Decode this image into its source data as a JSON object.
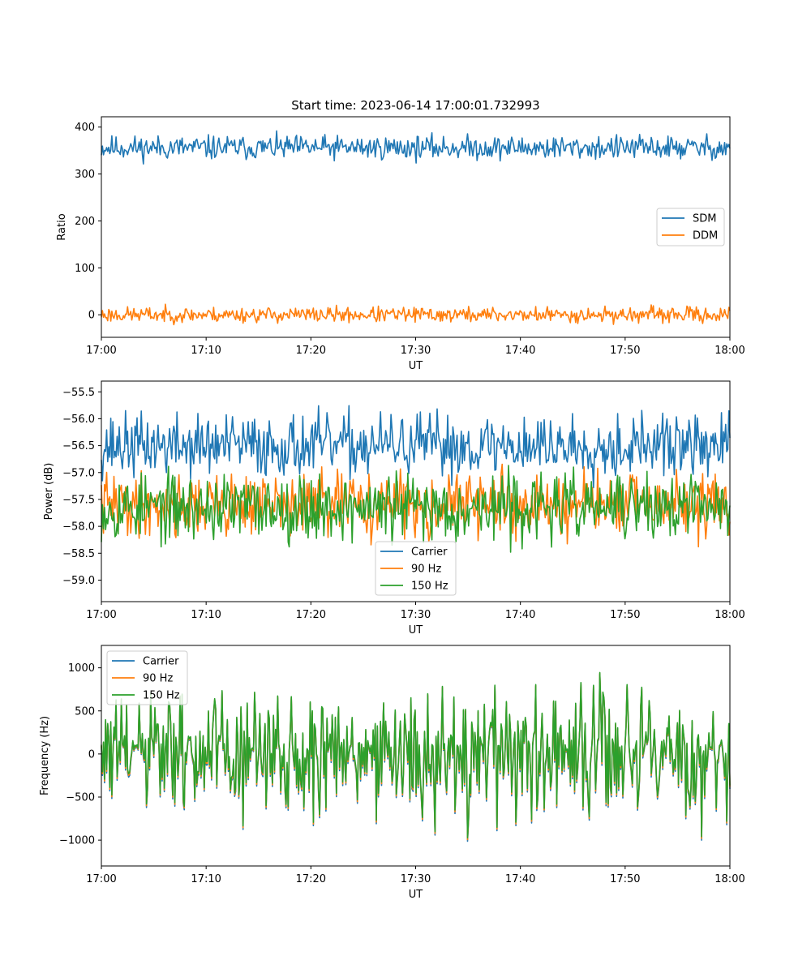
{
  "chart_data": [
    {
      "type": "line",
      "title": "Start time: 2023-06-14 17:00:01.732993",
      "xlabel": "UT",
      "ylabel": "Ratio",
      "xlim": [
        "17:00",
        "18:00"
      ],
      "xticks": [
        "17:00",
        "17:10",
        "17:20",
        "17:30",
        "17:40",
        "17:50",
        "18:00"
      ],
      "ylim": [
        -48,
        422
      ],
      "yticks": [
        0,
        100,
        200,
        300,
        400
      ],
      "ytick_labels": [
        "0",
        "100",
        "200",
        "300",
        "400"
      ],
      "grid": false,
      "legend": "center-right",
      "series": [
        {
          "name": "SDM",
          "color": "#1f77b4",
          "mean": 356,
          "noise": 14,
          "min": 315,
          "max": 397,
          "seed": 11
        },
        {
          "name": "DDM",
          "color": "#ff7f0e",
          "mean": 0,
          "noise": 9,
          "min": -27,
          "max": 25,
          "seed": 23
        }
      ]
    },
    {
      "type": "line",
      "title": "",
      "xlabel": "UT",
      "ylabel": "Power (dB)",
      "xlim": [
        "17:00",
        "18:00"
      ],
      "xticks": [
        "17:00",
        "17:10",
        "17:20",
        "17:30",
        "17:40",
        "17:50",
        "18:00"
      ],
      "ylim": [
        -59.4,
        -55.3
      ],
      "yticks": [
        -59.0,
        -58.5,
        -58.0,
        -57.5,
        -57.0,
        -56.5,
        -56.0,
        -55.5
      ],
      "ytick_labels": [
        "−59.0",
        "−58.5",
        "−58.0",
        "−57.5",
        "−57.0",
        "−56.5",
        "−56.0",
        "−55.5"
      ],
      "grid": false,
      "legend": "lower-center",
      "series": [
        {
          "name": "Carrier",
          "color": "#1f77b4",
          "mean": -56.5,
          "noise": 0.32,
          "min": -57.6,
          "max": -55.37,
          "seed": 37
        },
        {
          "name": "90 Hz",
          "color": "#ff7f0e",
          "mean": -57.6,
          "noise": 0.32,
          "min": -58.55,
          "max": -56.55,
          "seed": 41
        },
        {
          "name": "150 Hz",
          "color": "#2ca02c",
          "mean": -57.65,
          "noise": 0.34,
          "min": -58.82,
          "max": -56.6,
          "seed": 53
        }
      ]
    },
    {
      "type": "line",
      "title": "",
      "xlabel": "UT",
      "ylabel": "Frequency (Hz)",
      "xlim": [
        "17:00",
        "18:00"
      ],
      "xticks": [
        "17:00",
        "17:10",
        "17:20",
        "17:30",
        "17:40",
        "17:50",
        "18:00"
      ],
      "ylim": [
        -1300,
        1260
      ],
      "yticks": [
        -1000,
        -500,
        0,
        500,
        1000
      ],
      "ytick_labels": [
        "−1000",
        "−500",
        "0",
        "500",
        "1000"
      ],
      "grid": false,
      "legend": "upper-left",
      "series": [
        {
          "name": "Carrier",
          "color": "#1f77b4",
          "mean": 0,
          "noise": 380,
          "min": -1200,
          "max": 1100,
          "seed": 61,
          "offset": -40
        },
        {
          "name": "90 Hz",
          "color": "#ff7f0e",
          "mean": 0,
          "noise": 380,
          "min": -1150,
          "max": 1130,
          "seed": 61,
          "offset": -20
        },
        {
          "name": "150 Hz",
          "color": "#2ca02c",
          "mean": 0,
          "noise": 380,
          "min": -1100,
          "max": 1160,
          "seed": 61,
          "offset": 0
        }
      ]
    }
  ]
}
